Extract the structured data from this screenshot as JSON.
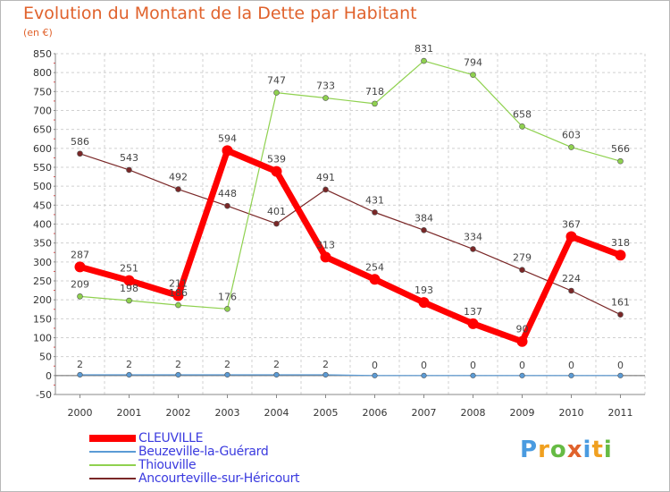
{
  "chart_data": {
    "type": "line",
    "title": "Evolution du Montant de la Dette par Habitant",
    "subtitle": "(en €)",
    "categories": [
      "2000",
      "2001",
      "2002",
      "2003",
      "2004",
      "2005",
      "2006",
      "2007",
      "2008",
      "2009",
      "2010",
      "2011"
    ],
    "ylim": [
      -50,
      850
    ],
    "yticks": [
      -50,
      0,
      50,
      100,
      150,
      200,
      250,
      300,
      350,
      400,
      450,
      500,
      550,
      600,
      650,
      700,
      750,
      800,
      850
    ],
    "grid": true,
    "legend_placement": "bottom-left",
    "series": [
      {
        "name": "CLEUVILLE",
        "color": "#ff0000",
        "values": [
          287,
          251,
          211,
          594,
          539,
          313,
          254,
          193,
          137,
          90,
          367,
          318
        ]
      },
      {
        "name": "Beuzeville-la-Guérard",
        "color": "#5b9bd5",
        "values": [
          2,
          2,
          2,
          2,
          2,
          2,
          0,
          0,
          0,
          0,
          0,
          0
        ]
      },
      {
        "name": "Thiouville",
        "color": "#8fd14f",
        "values": [
          209,
          198,
          186,
          176,
          747,
          733,
          718,
          831,
          794,
          658,
          603,
          566
        ]
      },
      {
        "name": "Ancourteville-sur-Héricourt",
        "color": "#7a2727",
        "values": [
          586,
          543,
          492,
          448,
          401,
          491,
          431,
          384,
          334,
          279,
          224,
          161
        ]
      }
    ],
    "data_labels": {
      "CLEUVILLE": [
        "287",
        "251",
        "211",
        "594",
        "539",
        "313",
        "254",
        "193",
        "137",
        "90",
        "367",
        "318"
      ],
      "Beuzeville-la-Guérard": [
        "2",
        "2",
        "2",
        "2",
        "2",
        "2",
        "0",
        "0",
        "0",
        "0",
        "0",
        "0"
      ],
      "Thiouville": [
        "209",
        "198",
        "186",
        "176",
        "747",
        "733",
        "718",
        "831",
        "794",
        "658",
        "603",
        "566"
      ],
      "Ancourteville-sur-Héricourt": [
        "586",
        "543",
        "492",
        "448",
        "401",
        "491",
        "431",
        "384",
        "334",
        "279",
        "224",
        "161"
      ]
    }
  },
  "logo": {
    "letters": [
      "P",
      "r",
      "o",
      "x",
      "i",
      "t",
      "i"
    ],
    "colors": [
      "#4a9be0",
      "#f0a020",
      "#66bb44",
      "#e0622c",
      "#4a9be0",
      "#f0a020",
      "#66bb44"
    ]
  }
}
